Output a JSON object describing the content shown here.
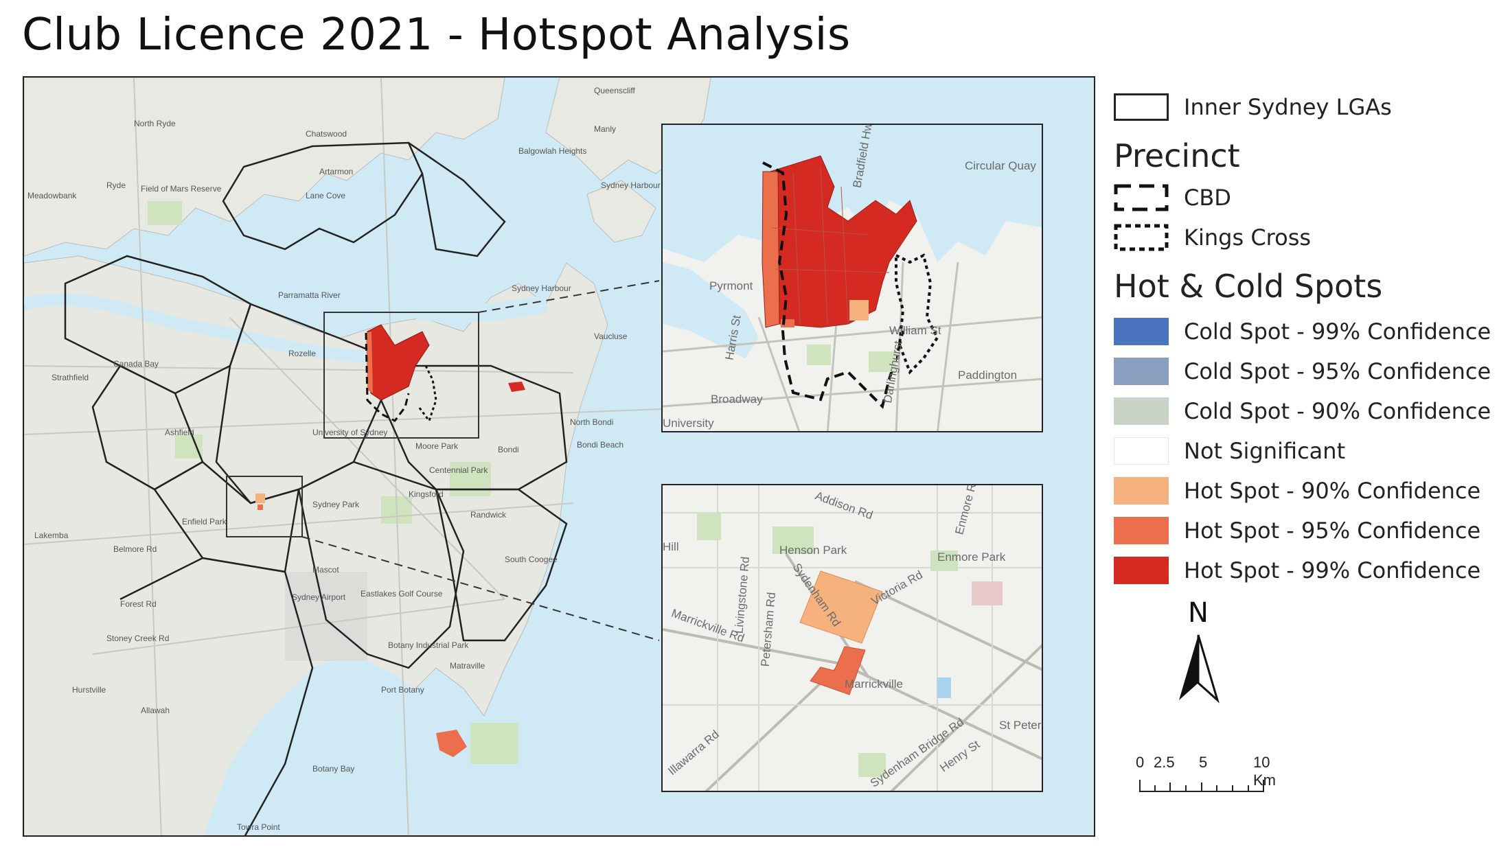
{
  "title": "Club Licence 2021 - Hotspot Analysis",
  "legend": {
    "lga_label": "Inner Sydney LGAs",
    "precinct_heading": "Precinct",
    "precincts": [
      {
        "label": "CBD",
        "style": "dashed-long"
      },
      {
        "label": "Kings Cross",
        "style": "dashed-short"
      }
    ],
    "hotcold_heading": "Hot & Cold Spots",
    "classes": [
      {
        "label": "Cold Spot - 99% Confidence",
        "color": "#4a74bd"
      },
      {
        "label": "Cold Spot - 95% Confidence",
        "color": "#8a9fbf"
      },
      {
        "label": "Cold Spot - 90% Confidence",
        "color": "#c8d3c6"
      },
      {
        "label": "Not Significant",
        "color": "#ffffff"
      },
      {
        "label": "Hot Spot - 90% Confidence",
        "color": "#f5b27e"
      },
      {
        "label": "Hot Spot - 95% Confidence",
        "color": "#eb6f4c"
      },
      {
        "label": "Hot Spot - 99% Confidence",
        "color": "#d42a22"
      }
    ]
  },
  "north_arrow": {
    "label": "N"
  },
  "scale_bar": {
    "ticks": [
      "0",
      "2.5",
      "5",
      "10 Km"
    ]
  },
  "main_map": {
    "place_labels": [
      "Queenscliff",
      "North Ryde",
      "Chatswood",
      "Manly",
      "Balgowlah Heights",
      "Artarmon",
      "Lane Cove",
      "Ryde",
      "Field of Mars Reserve",
      "Meadowbank",
      "Sydney Harbour NP North Head",
      "Parramatta River",
      "Sydney Harbour",
      "Rozelle",
      "Vaucluse",
      "Strathfield",
      "Canada Bay",
      "Ashfield",
      "North Bondi",
      "Bondi Beach",
      "Bondi",
      "University of Sydney",
      "Moore Park",
      "Centennial Park",
      "Lakemba",
      "Enfield Park",
      "Sydney Park",
      "Randwick",
      "South Coogee",
      "Mascot",
      "Sydney Airport",
      "Eastlakes Golf Course",
      "Botany Industrial Park",
      "Matraville",
      "Hurstville",
      "Allawah",
      "Port Botany",
      "Botany Bay",
      "Towra Point",
      "Kingsford",
      "Forest Rd",
      "Stoney Creek Rd",
      "Belmore Rd"
    ]
  },
  "inset_cbd": {
    "place_labels": [
      "Pyrmont",
      "Harris St",
      "Broadway",
      "William St",
      "Paddington",
      "Darlinghurst",
      "Circular Quay",
      "Bradfield Hwy",
      "University"
    ]
  },
  "inset_marrickville": {
    "place_labels": [
      "Addison Rd",
      "Enmore Park",
      "Enmore Rd",
      "Henson Park",
      "Livingstone Rd",
      "Petersham Rd",
      "Marrickville Rd",
      "Sydenham Rd",
      "Victoria Rd",
      "Marrickville",
      "St Peters",
      "Henry St",
      "Illawarra Rd",
      "Sydenham Bridge Rd",
      "Hill"
    ]
  }
}
